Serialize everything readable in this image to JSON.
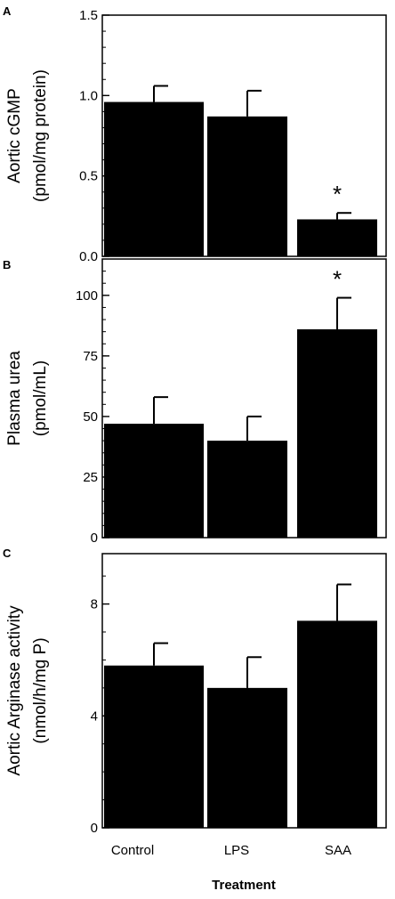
{
  "figure": {
    "xlabel": "Treatment",
    "categories": [
      "Control",
      "LPS",
      "SAA"
    ]
  },
  "chart_data": [
    {
      "type": "bar",
      "panel": "A",
      "categories": [
        "Control",
        "LPS",
        "SAA"
      ],
      "values": [
        0.96,
        0.87,
        0.23
      ],
      "errors": [
        0.1,
        0.16,
        0.04
      ],
      "significance": [
        "",
        "",
        "*"
      ],
      "ylabel_lines": [
        "Aortic cGMP",
        "(pmol/mg protein)"
      ],
      "ylim": [
        0,
        1.5
      ],
      "yticks": [
        0,
        0.5,
        1.0,
        1.5
      ],
      "ytick_labels": [
        "0.0",
        "0.5",
        "1.0",
        "1.5"
      ],
      "minor_step": 0.1,
      "title": "",
      "xlabel": "Treatment"
    },
    {
      "type": "bar",
      "panel": "B",
      "categories": [
        "Control",
        "LPS",
        "SAA"
      ],
      "values": [
        47,
        40,
        86
      ],
      "errors": [
        11,
        10,
        13
      ],
      "significance": [
        "",
        "",
        "*"
      ],
      "ylabel_lines": [
        "Plasma urea",
        "(pmol/mL)"
      ],
      "ylim": [
        0,
        115
      ],
      "yticks": [
        0,
        25,
        50,
        75,
        100
      ],
      "ytick_labels": [
        "0",
        "25",
        "50",
        "75",
        "100"
      ],
      "minor_step": 5,
      "title": "",
      "xlabel": "Treatment"
    },
    {
      "type": "bar",
      "panel": "C",
      "categories": [
        "Control",
        "LPS",
        "SAA"
      ],
      "values": [
        5.8,
        5.0,
        7.4
      ],
      "errors": [
        0.8,
        1.1,
        1.3
      ],
      "significance": [
        "",
        "",
        ""
      ],
      "ylabel_lines": [
        "Aortic Arginase activity",
        "(nmol/h/mg P)"
      ],
      "ylim": [
        0,
        9.8
      ],
      "yticks": [
        0,
        4,
        8
      ],
      "ytick_labels": [
        "0",
        "4",
        "8"
      ],
      "minor_step": 1,
      "title": "",
      "xlabel": "Treatment"
    }
  ]
}
